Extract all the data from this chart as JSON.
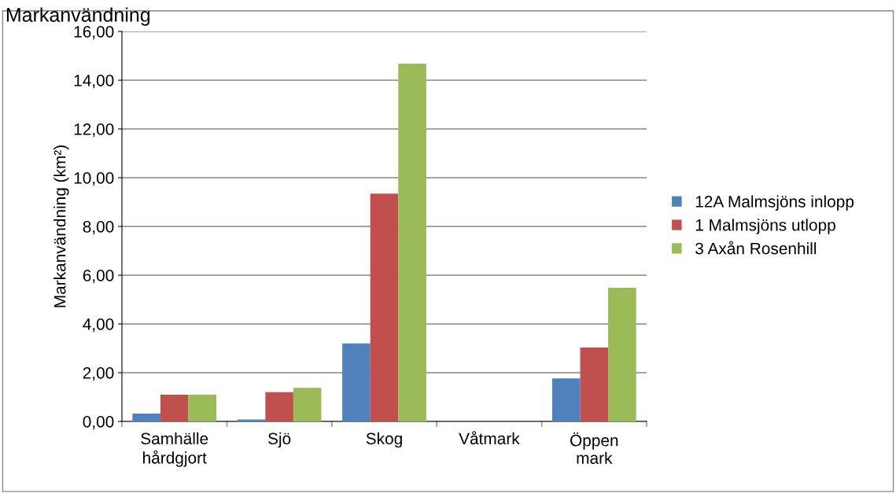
{
  "chart_data": {
    "type": "bar",
    "title": "Markanvändning",
    "ylabel": "Markanvändning (km²)",
    "categories": [
      "Samhälle\nhårdgjort",
      "Sjö",
      "Skog",
      "Våtmark",
      "Öppen\nmark"
    ],
    "series": [
      {
        "name": "12A Malmsjöns inlopp",
        "color": "#4f81bd",
        "values": [
          0.32,
          0.08,
          3.2,
          0,
          1.77
        ]
      },
      {
        "name": "1 Malmsjöns utlopp",
        "color": "#c0504d",
        "values": [
          1.1,
          1.2,
          9.35,
          0,
          3.03
        ]
      },
      {
        "name": "3 Axån Rosenhill",
        "color": "#9bbb59",
        "values": [
          1.1,
          1.38,
          14.68,
          0,
          5.48
        ]
      }
    ],
    "ylim": [
      0,
      16
    ],
    "yticks": [
      {
        "value": 0,
        "label": "0,00"
      },
      {
        "value": 2,
        "label": "2,00"
      },
      {
        "value": 4,
        "label": "4,00"
      },
      {
        "value": 6,
        "label": "6,00"
      },
      {
        "value": 8,
        "label": "8,00"
      },
      {
        "value": 10,
        "label": "10,00"
      },
      {
        "value": 12,
        "label": "12,00"
      },
      {
        "value": 14,
        "label": "14,00"
      },
      {
        "value": 16,
        "label": "16,00"
      }
    ],
    "grid": "y",
    "legend": "right"
  }
}
